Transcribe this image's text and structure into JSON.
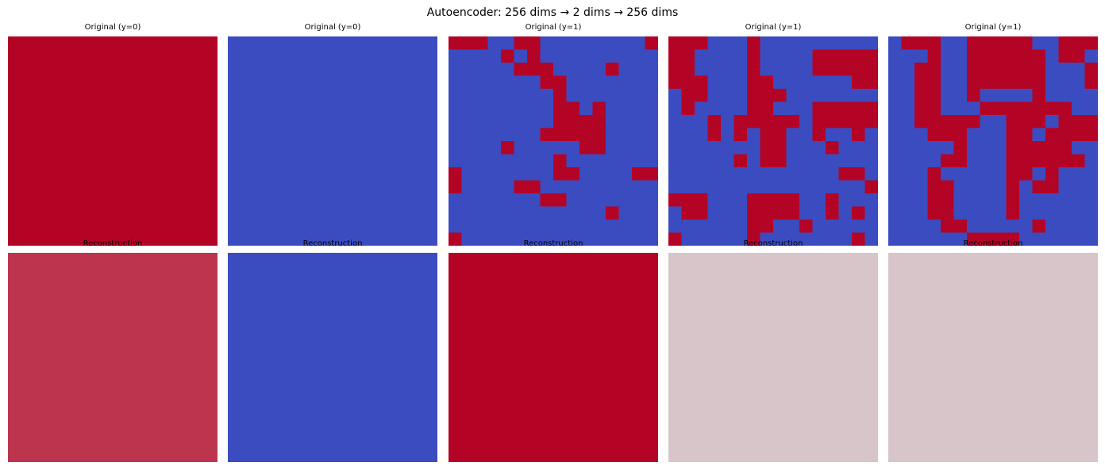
{
  "figure": {
    "title": "Autoencoder: 256 dims → 2 dims → 256 dims"
  },
  "colormap": {
    "name": "coolwarm",
    "low": "#3b4cc0",
    "mid": "#dddddd",
    "high": "#b40426"
  },
  "chart_data": [
    {
      "type": "heatmap",
      "title": "Original (y=0)",
      "rows": 16,
      "cols": 16,
      "vmin": 0,
      "vmax": 1,
      "grid": [
        "1111111111111111",
        "1111111111111111",
        "1111111111111111",
        "1111111111111111",
        "1111111111111111",
        "1111111111111111",
        "1111111111111111",
        "1111111111111111",
        "1111111111111111",
        "1111111111111111",
        "1111111111111111",
        "1111111111111111",
        "1111111111111111",
        "1111111111111111",
        "1111111111111111",
        "1111111111111111"
      ]
    },
    {
      "type": "heatmap",
      "title": "Original (y=0)",
      "rows": 16,
      "cols": 16,
      "vmin": 0,
      "vmax": 1,
      "grid": [
        "0000000000000000",
        "0000000000000000",
        "0000000000000000",
        "0000000000000000",
        "0000000000000000",
        "0000000000000000",
        "0000000000000000",
        "0000000000000000",
        "0000000000000000",
        "0000000000000000",
        "0000000000000000",
        "0000000000000000",
        "0000000000000000",
        "0000000000000000",
        "0000000000000000",
        "0000000000000000"
      ]
    },
    {
      "type": "heatmap",
      "title": "Original (y=1)",
      "rows": 16,
      "cols": 16,
      "vmin": 0,
      "vmax": 1,
      "grid": [
        "1110011000000001",
        "0000101000000000",
        "0000011100001000",
        "0000000110000000",
        "0000000010000000",
        "0000000011010000",
        "0000000011110000",
        "0000000111110000",
        "0000100000110000",
        "0000000010000000",
        "1000000011000011",
        "1000011000000000",
        "0000000110000000",
        "0000000000001000",
        "0000000000000000",
        "1000000000000000"
      ]
    },
    {
      "type": "heatmap",
      "title": "Original (y=1)",
      "rows": 16,
      "cols": 16,
      "vmin": 0,
      "vmax": 1,
      "grid": [
        "1110001000000000",
        "1100001000011111",
        "1100001000011111",
        "1110001100000011",
        "0110001110000000",
        "0100001100011111",
        "0001011111011111",
        "0001010110010010",
        "0000000110001000",
        "0000010110000000",
        "0000000000000110",
        "0000000000000001",
        "1110001111001000",
        "0110001111001010",
        "0000001100100000",
        "1000001000000010"
      ]
    },
    {
      "type": "heatmap",
      "title": "Original (y=1)",
      "rows": 16,
      "cols": 16,
      "vmin": 0,
      "vmax": 1,
      "grid": [
        "0111001111100111",
        "0001001111110110",
        "0011001111110001",
        "0011001111110001",
        "0011001000010000",
        "0011000111111100",
        "0011111001110111",
        "0001110001101111",
        "0000010001111100",
        "0000110001111110",
        "0001000001101000",
        "0001100001011000",
        "0001100001000000",
        "0001100001000000",
        "0000110000010000",
        "0000001111000000"
      ]
    },
    {
      "type": "heatmap",
      "title": "Reconstruction",
      "rows": 16,
      "cols": 16,
      "vmin": 0,
      "vmax": 1,
      "grid": [
        "8888888888888888",
        "8888888888888888",
        "8888888888888888",
        "8888888888888888",
        "8888888888888888",
        "8888888888888888",
        "8888888888888888",
        "8888888888888888",
        "8888888888888888",
        "8888888888888888",
        "8888888888888888",
        "8888888888888888",
        "8888888888888888",
        "8888888888888888",
        "8888888888888888",
        "8888888888888888"
      ]
    },
    {
      "type": "heatmap",
      "title": "Reconstruction",
      "rows": 16,
      "cols": 16,
      "vmin": 0,
      "vmax": 1,
      "grid": [
        "0000000000000000",
        "0000000000000000",
        "0000000000000000",
        "0000000000000000",
        "0000000000000000",
        "0000000000000000",
        "0000000000000000",
        "0000000000000000",
        "0000000000000000",
        "0000000000000000",
        "0000000000000000",
        "0000000000000000",
        "0000000000000000",
        "0000000000000000",
        "0000000000000000",
        "0000000000000000"
      ]
    },
    {
      "type": "heatmap",
      "title": "Reconstruction",
      "rows": 16,
      "cols": 16,
      "vmin": 0,
      "vmax": 1,
      "grid": [
        "1111111111111111",
        "1111111111111111",
        "1111111111111111",
        "1111111111111111",
        "1111111111111111",
        "1111111111111111",
        "1111111111111111",
        "1111111111111111",
        "1111111111111111",
        "1111111111111111",
        "1111111111111111",
        "1111111111111111",
        "1111111111111111",
        "1111111111111111",
        "1111111111111111",
        "1111111111111111"
      ]
    },
    {
      "type": "heatmap",
      "title": "Reconstruction",
      "rows": 16,
      "cols": 16,
      "vmin": 0,
      "vmax": 1,
      "grid": [
        "5555555555555555",
        "5555555555555555",
        "5555555555555555",
        "5555555555555555",
        "5555555555555555",
        "5555555555555555",
        "5555555555555555",
        "5555555555555555",
        "5555555555555555",
        "5555555555555555",
        "5555555555555555",
        "5555555555555555",
        "5555555555555555",
        "5555555555555555",
        "5555555555555555",
        "5555555555555555"
      ]
    },
    {
      "type": "heatmap",
      "title": "Reconstruction",
      "rows": 16,
      "cols": 16,
      "vmin": 0,
      "vmax": 1,
      "grid": [
        "5555555555555555",
        "5555555555555555",
        "5555555555555555",
        "5555555555555555",
        "5555555555555555",
        "5555555555555555",
        "5555555555555555",
        "5555555555555555",
        "5555555555555555",
        "5555555555555555",
        "5555555555555555",
        "5555555555555555",
        "5555555555555555",
        "5555555555555555",
        "5555555555555555",
        "5555555555555555"
      ]
    }
  ]
}
